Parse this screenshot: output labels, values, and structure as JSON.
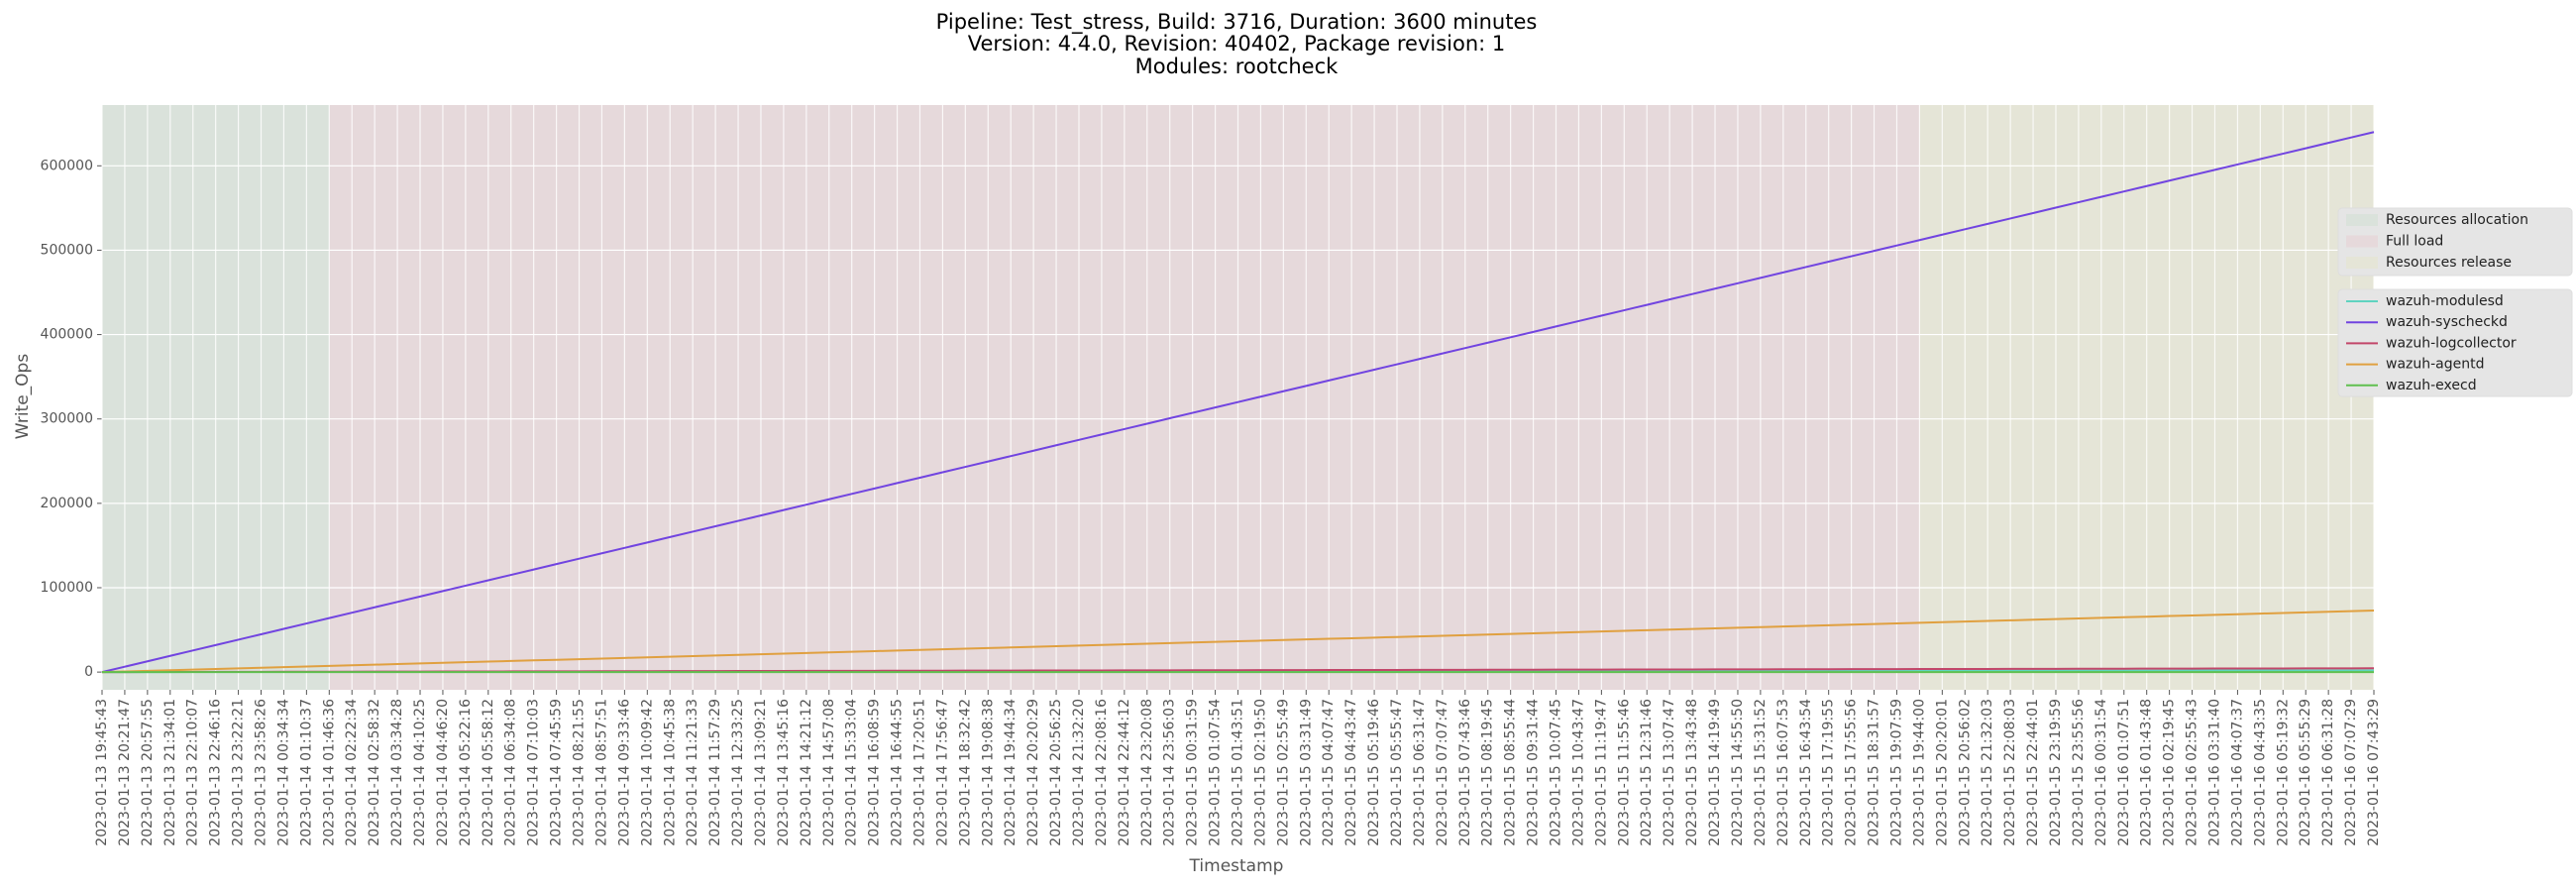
{
  "chart_data": {
    "type": "line",
    "title": [
      "Pipeline: Test_stress, Build: 3716, Duration: 3600 minutes",
      "Version: 4.4.0, Revision: 40402, Package revision: 1",
      "Modules: rootcheck"
    ],
    "xlabel": "Timestamp",
    "ylabel": "Write_Ops",
    "grid": true,
    "legend": "right",
    "ylim": [
      -21000,
      672000
    ],
    "yticks": [
      0,
      100000,
      200000,
      300000,
      400000,
      500000,
      600000
    ],
    "phases": [
      {
        "name": "Resources allocation",
        "color": "#dae2db",
        "start": "2023-01-13 19:45:43",
        "end": "2023-01-14 01:46:36"
      },
      {
        "name": "Full load",
        "color": "#e6d9db",
        "start": "2023-01-14 01:46:36",
        "end": "2023-01-15 19:44:00"
      },
      {
        "name": "Resources release",
        "color": "#e5e5d7",
        "start": "2023-01-15 19:44:00",
        "end": "2023-01-16 07:43:29"
      }
    ],
    "categories": [
      "2023-01-13 19:45:43",
      "2023-01-13 20:21:47",
      "2023-01-13 20:57:55",
      "2023-01-13 21:34:01",
      "2023-01-13 22:10:07",
      "2023-01-13 22:46:16",
      "2023-01-13 23:22:21",
      "2023-01-13 23:58:26",
      "2023-01-14 00:34:34",
      "2023-01-14 01:10:37",
      "2023-01-14 01:46:36",
      "2023-01-14 02:22:34",
      "2023-01-14 02:58:32",
      "2023-01-14 03:34:28",
      "2023-01-14 04:10:25",
      "2023-01-14 04:46:20",
      "2023-01-14 05:22:16",
      "2023-01-14 05:58:12",
      "2023-01-14 06:34:08",
      "2023-01-14 07:10:03",
      "2023-01-14 07:45:59",
      "2023-01-14 08:21:55",
      "2023-01-14 08:57:51",
      "2023-01-14 09:33:46",
      "2023-01-14 10:09:42",
      "2023-01-14 10:45:38",
      "2023-01-14 11:21:33",
      "2023-01-14 11:57:29",
      "2023-01-14 12:33:25",
      "2023-01-14 13:09:21",
      "2023-01-14 13:45:16",
      "2023-01-14 14:21:12",
      "2023-01-14 14:57:08",
      "2023-01-14 15:33:04",
      "2023-01-14 16:08:59",
      "2023-01-14 16:44:55",
      "2023-01-14 17:20:51",
      "2023-01-14 17:56:47",
      "2023-01-14 18:32:42",
      "2023-01-14 19:08:38",
      "2023-01-14 19:44:34",
      "2023-01-14 20:20:29",
      "2023-01-14 20:56:25",
      "2023-01-14 21:32:20",
      "2023-01-14 22:08:16",
      "2023-01-14 22:44:12",
      "2023-01-14 23:20:08",
      "2023-01-14 23:56:03",
      "2023-01-15 00:31:59",
      "2023-01-15 01:07:54",
      "2023-01-15 01:43:51",
      "2023-01-15 02:19:50",
      "2023-01-15 02:55:49",
      "2023-01-15 03:31:49",
      "2023-01-15 04:07:47",
      "2023-01-15 04:43:47",
      "2023-01-15 05:19:46",
      "2023-01-15 05:55:47",
      "2023-01-15 06:31:47",
      "2023-01-15 07:07:47",
      "2023-01-15 07:43:46",
      "2023-01-15 08:19:45",
      "2023-01-15 08:55:44",
      "2023-01-15 09:31:44",
      "2023-01-15 10:07:45",
      "2023-01-15 10:43:47",
      "2023-01-15 11:19:47",
      "2023-01-15 11:55:46",
      "2023-01-15 12:31:46",
      "2023-01-15 13:07:47",
      "2023-01-15 13:43:48",
      "2023-01-15 14:19:49",
      "2023-01-15 14:55:50",
      "2023-01-15 15:31:52",
      "2023-01-15 16:07:53",
      "2023-01-15 16:43:54",
      "2023-01-15 17:19:55",
      "2023-01-15 17:55:56",
      "2023-01-15 18:31:57",
      "2023-01-15 19:07:59",
      "2023-01-15 19:44:00",
      "2023-01-15 20:20:01",
      "2023-01-15 20:56:02",
      "2023-01-15 21:32:03",
      "2023-01-15 22:08:03",
      "2023-01-15 22:44:01",
      "2023-01-15 23:19:59",
      "2023-01-15 23:55:56",
      "2023-01-16 00:31:54",
      "2023-01-16 01:07:51",
      "2023-01-16 01:43:48",
      "2023-01-16 02:19:45",
      "2023-01-16 02:55:43",
      "2023-01-16 03:31:40",
      "2023-01-16 04:07:37",
      "2023-01-16 04:43:35",
      "2023-01-16 05:19:32",
      "2023-01-16 05:55:29",
      "2023-01-16 06:31:28",
      "2023-01-16 07:07:29",
      "2023-01-16 07:43:29"
    ],
    "series": [
      {
        "name": "wazuh-modulesd",
        "color": "#5fd3c0",
        "values": [
          0,
          20,
          40,
          60,
          80,
          100,
          120,
          140,
          160,
          180,
          200,
          220,
          240,
          260,
          280,
          300,
          320,
          340,
          360,
          380,
          400,
          420,
          440,
          460,
          480,
          500,
          520,
          540,
          560,
          580,
          600,
          620,
          640,
          660,
          680,
          700,
          720,
          740,
          760,
          780,
          800,
          820,
          840,
          860,
          880,
          900,
          920,
          940,
          960,
          980,
          1000,
          1020,
          1040,
          1060,
          1080,
          1100,
          1120,
          1140,
          1160,
          1180,
          1200,
          1220,
          1240,
          1260,
          1280,
          1300,
          1320,
          1340,
          1360,
          1380,
          1400,
          1420,
          1440,
          1460,
          1480,
          1500,
          1520,
          1540,
          1560,
          1580,
          1600,
          1620,
          1640,
          1660,
          1680,
          1700,
          1720,
          1740,
          1760,
          1780,
          1800,
          1820,
          1840,
          1860,
          1880,
          1900,
          1920,
          1940,
          1960,
          1980,
          2000
        ]
      },
      {
        "name": "wazuh-syscheckd",
        "color": "#7144e0",
        "values": [
          0,
          6400,
          12800,
          19200,
          25600,
          32000,
          38400,
          44800,
          51200,
          57600,
          64000,
          70400,
          76800,
          83200,
          89600,
          96000,
          102400,
          108800,
          115200,
          121600,
          128000,
          134400,
          140800,
          147200,
          153600,
          160000,
          166400,
          172800,
          179200,
          185600,
          192000,
          198400,
          204800,
          211200,
          217600,
          224000,
          230400,
          236800,
          243200,
          249600,
          256000,
          262400,
          268800,
          275200,
          281600,
          288000,
          294400,
          300800,
          307200,
          313600,
          320000,
          326400,
          332800,
          339200,
          345600,
          352000,
          358400,
          364800,
          371200,
          377600,
          384000,
          390400,
          396800,
          403200,
          409600,
          416000,
          422400,
          428800,
          435200,
          441600,
          448000,
          454400,
          460800,
          467200,
          473600,
          480000,
          486400,
          492800,
          499200,
          505600,
          512000,
          518400,
          524800,
          531200,
          537600,
          544000,
          550400,
          556800,
          563200,
          569600,
          576000,
          582400,
          588800,
          595200,
          601600,
          608000,
          614400,
          620800,
          627200,
          633600,
          640000
        ]
      },
      {
        "name": "wazuh-logcollector",
        "color": "#c2476a",
        "values": [
          0,
          45,
          90,
          135,
          180,
          225,
          270,
          315,
          360,
          405,
          450,
          495,
          540,
          585,
          630,
          675,
          720,
          765,
          810,
          855,
          900,
          945,
          990,
          1035,
          1080,
          1125,
          1170,
          1215,
          1260,
          1305,
          1350,
          1395,
          1440,
          1485,
          1530,
          1575,
          1620,
          1665,
          1710,
          1755,
          1800,
          1845,
          1890,
          1935,
          1980,
          2025,
          2070,
          2115,
          2160,
          2205,
          2250,
          2295,
          2340,
          2385,
          2430,
          2475,
          2520,
          2565,
          2610,
          2655,
          2700,
          2745,
          2790,
          2835,
          2880,
          2925,
          2970,
          3015,
          3060,
          3105,
          3150,
          3195,
          3240,
          3285,
          3330,
          3375,
          3420,
          3465,
          3510,
          3555,
          3600,
          3645,
          3690,
          3735,
          3780,
          3825,
          3870,
          3915,
          3960,
          4005,
          4050,
          4095,
          4140,
          4185,
          4230,
          4275,
          4320,
          4365,
          4410,
          4455,
          4500
        ]
      },
      {
        "name": "wazuh-agentd",
        "color": "#e0a040",
        "values": [
          0,
          730,
          1460,
          2190,
          2920,
          3650,
          4380,
          5110,
          5840,
          6570,
          7300,
          8030,
          8760,
          9490,
          10220,
          10950,
          11680,
          12410,
          13140,
          13870,
          14600,
          15330,
          16060,
          16790,
          17520,
          18250,
          18980,
          19710,
          20440,
          21170,
          21900,
          22630,
          23360,
          24090,
          24820,
          25550,
          26280,
          27010,
          27740,
          28470,
          29200,
          29930,
          30660,
          31390,
          32120,
          32850,
          33580,
          34310,
          35040,
          35770,
          36500,
          37230,
          37960,
          38690,
          39420,
          40150,
          40880,
          41610,
          42340,
          43070,
          43800,
          44530,
          45260,
          45990,
          46720,
          47450,
          48180,
          48910,
          49640,
          50370,
          51100,
          51830,
          52560,
          53290,
          54020,
          54750,
          55480,
          56210,
          56940,
          57670,
          58400,
          59130,
          59860,
          60590,
          61320,
          62050,
          62780,
          63510,
          64240,
          64970,
          65700,
          66430,
          67160,
          67890,
          68620,
          69350,
          70080,
          70810,
          71540,
          72270,
          73000
        ]
      },
      {
        "name": "wazuh-execd",
        "color": "#60c050",
        "values": [
          0,
          0,
          0,
          0,
          0,
          0,
          0,
          0,
          0,
          0,
          0,
          0,
          0,
          0,
          0,
          0,
          0,
          0,
          0,
          0,
          0,
          0,
          0,
          0,
          0,
          0,
          0,
          0,
          0,
          0,
          0,
          0,
          0,
          0,
          0,
          0,
          0,
          0,
          0,
          0,
          0,
          0,
          0,
          0,
          0,
          0,
          0,
          0,
          0,
          0,
          0,
          0,
          0,
          0,
          0,
          0,
          0,
          0,
          0,
          0,
          0,
          0,
          0,
          0,
          0,
          0,
          0,
          0,
          0,
          0,
          0,
          0,
          0,
          0,
          0,
          0,
          0,
          0,
          0,
          0,
          0,
          0,
          0,
          0,
          0,
          0,
          0,
          0,
          0,
          0,
          0,
          0,
          0,
          0,
          0,
          0,
          0,
          0,
          0,
          0,
          0
        ]
      }
    ]
  }
}
